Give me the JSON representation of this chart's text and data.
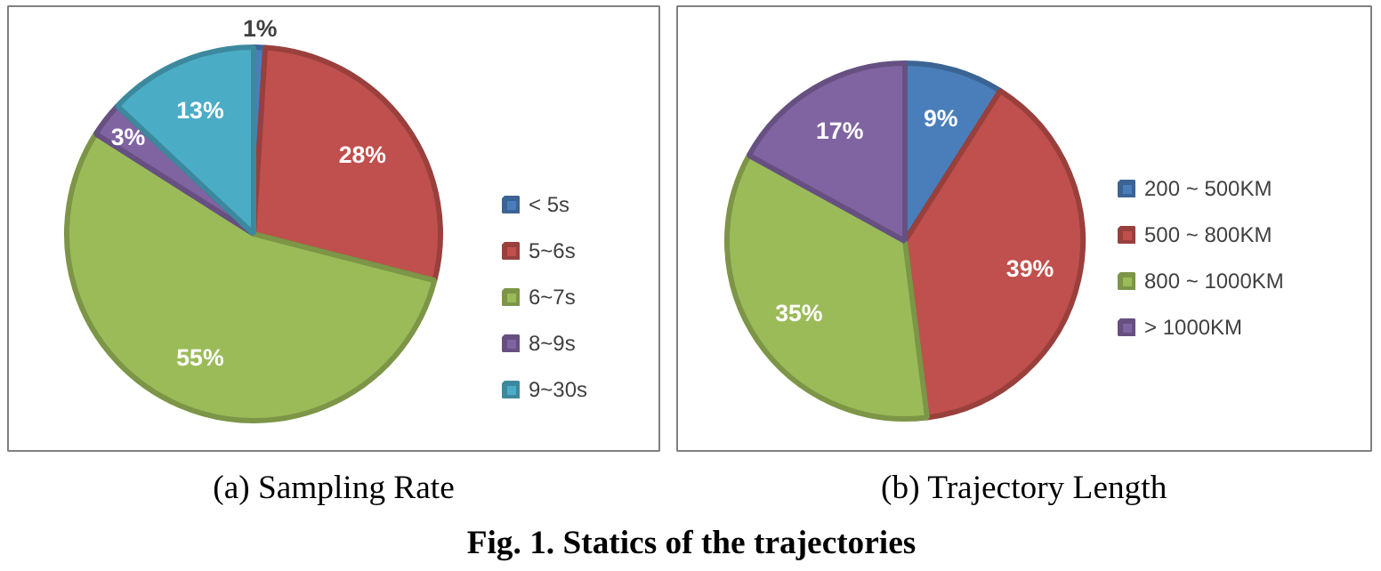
{
  "chart_data": [
    {
      "type": "pie",
      "title": "(a) Sampling Rate",
      "categories": [
        "< 5s",
        "5~6s",
        "6~7s",
        "8~9s",
        "9~30s"
      ],
      "values": [
        1,
        28,
        55,
        3,
        13
      ],
      "colors": [
        "#4a7ebb",
        "#c0504d",
        "#9bbb59",
        "#8064a2",
        "#4bacc6"
      ],
      "value_labels": [
        "1%",
        "28%",
        "55%",
        "3%",
        "13%"
      ],
      "legend": "right",
      "annotations": [
        "Fig. 1. Statics of the trajectories"
      ]
    },
    {
      "type": "pie",
      "title": "(b) Trajectory Length",
      "categories": [
        "200 ~ 500KM",
        "500 ~ 800KM",
        "800 ~ 1000KM",
        "> 1000KM"
      ],
      "values": [
        9,
        39,
        35,
        17
      ],
      "colors": [
        "#4a7ebb",
        "#c0504d",
        "#9bbb59",
        "#8064a2"
      ],
      "value_labels": [
        "9%",
        "39%",
        "35%",
        "17%"
      ],
      "legend": "right"
    }
  ]
}
